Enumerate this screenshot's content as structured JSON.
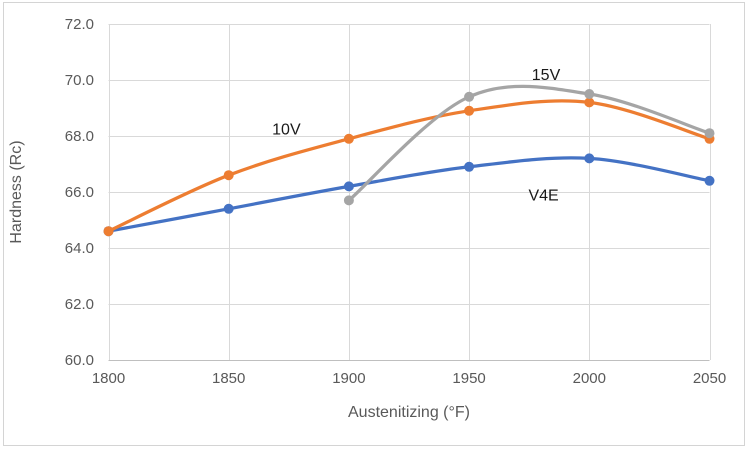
{
  "chart_data": {
    "type": "line",
    "xlabel": "Austenitizing (°F)",
    "ylabel": "Hardness (Rc)",
    "x": [
      1800,
      1850,
      1900,
      1950,
      2000,
      2050
    ],
    "series": [
      {
        "name": "V4E",
        "color": "#4472C4",
        "values": [
          64.6,
          65.4,
          66.2,
          66.9,
          67.2,
          66.4
        ]
      },
      {
        "name": "10V",
        "color": "#ED7D31",
        "values": [
          64.6,
          66.6,
          67.9,
          68.9,
          69.2,
          67.9
        ]
      },
      {
        "name": "15V",
        "color": "#A5A5A5",
        "values": [
          null,
          null,
          65.7,
          69.4,
          69.5,
          68.1
        ]
      }
    ],
    "annotations": [
      {
        "text": "10V",
        "x": 1874,
        "y": 68.25
      },
      {
        "text": "15V",
        "x": 1982,
        "y": 70.2
      },
      {
        "text": "V4E",
        "x": 1981,
        "y": 65.9
      }
    ],
    "xlim": [
      1800,
      2050
    ],
    "ylim": [
      60.0,
      72.0
    ],
    "x_ticks": [
      "1800",
      "1850",
      "1900",
      "1950",
      "2000",
      "2050"
    ],
    "y_ticks": [
      "60.0",
      "62.0",
      "64.0",
      "66.0",
      "68.0",
      "70.0",
      "72.0"
    ],
    "grid": true,
    "smooth": true,
    "marker": "circle",
    "legend": "none",
    "colors": {
      "gridline": "#D9D9D9",
      "axis_line": "#BFBFBF",
      "tick_text": "#595959",
      "annotation_text": "#1a1a1a",
      "border": "#D4D4D4",
      "background": "#FFFFFF"
    }
  }
}
